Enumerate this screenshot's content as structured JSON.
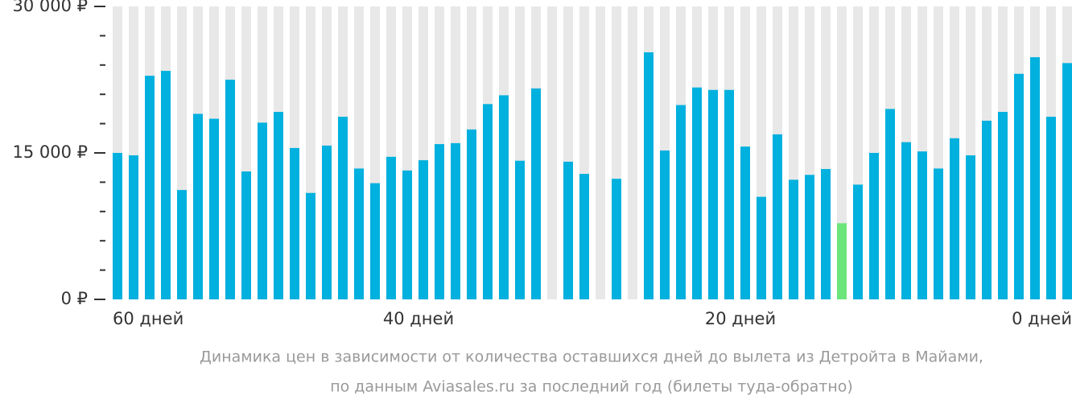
{
  "chart_data": {
    "type": "bar",
    "values": [
      15000,
      14750,
      22900,
      23400,
      11200,
      19000,
      18500,
      22500,
      13100,
      18100,
      19200,
      15500,
      10900,
      15750,
      18700,
      13400,
      11900,
      14600,
      13200,
      14250,
      15900,
      16000,
      17400,
      20000,
      20900,
      14200,
      21600,
      null,
      14100,
      12850,
      null,
      12350,
      null,
      25300,
      15250,
      19900,
      21700,
      21450,
      21450,
      15650,
      10500,
      16900,
      12250,
      12750,
      13350,
      7800,
      11750,
      15000,
      19500,
      16100,
      15150,
      13400,
      16500,
      14750,
      18300,
      19200,
      23100,
      24800,
      18700,
      24200
    ],
    "color": "#00b0de",
    "highlight": {
      "index": 45,
      "color": "#6ce57b"
    },
    "ylim": [
      0,
      30000
    ],
    "yticks": [
      {
        "value": 0,
        "label": "0 ₽"
      },
      {
        "value": 15000,
        "label": "15 000 ₽"
      },
      {
        "value": 30000,
        "label": "30 000 ₽"
      }
    ],
    "minor_yticks": [
      3000,
      6000,
      9000,
      12000,
      18000,
      21000,
      24000,
      27000
    ],
    "xlabels": [
      "60 дней",
      "40 дней",
      "20 дней",
      "0 дней"
    ],
    "caption": [
      "Динамика цен в зависимости от количества оставшихся дней до вылета из Детройта в Майами,",
      "по данным Aviasales.ru за последний год (билеты туда-обратно)"
    ]
  }
}
